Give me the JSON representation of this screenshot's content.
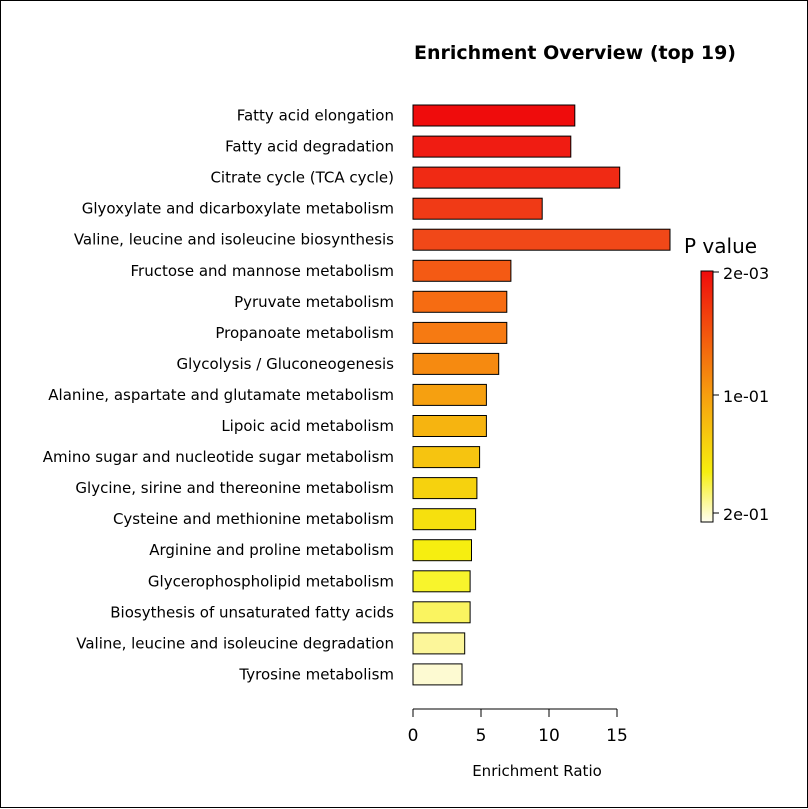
{
  "chart_data": {
    "type": "bar",
    "orientation": "horizontal",
    "title": "Enrichment Overview (top 19)",
    "xlabel": "Enrichment Ratio",
    "ylabel": "",
    "xlim": [
      0,
      19
    ],
    "x_ticks": [
      0,
      5,
      10,
      15
    ],
    "grid": false,
    "categories": [
      "Fatty acid elongation",
      "Fatty acid degradation",
      "Citrate cycle (TCA cycle)",
      "Glyoxylate and dicarboxylate metabolism",
      "Valine, leucine and isoleucine biosynthesis",
      "Fructose and mannose metabolism",
      "Pyruvate metabolism",
      "Propanoate metabolism",
      "Glycolysis / Gluconeogenesis",
      "Alanine, aspartate and glutamate metabolism",
      "Lipoic acid metabolism",
      "Amino sugar and nucleotide sugar metabolism",
      "Glycine, sirine and thereonine metabolism",
      "Cysteine and methionine metabolism",
      "Arginine and proline metabolism",
      "Glycerophospholipid metabolism",
      "Biosythesis of unsaturated fatty acids",
      "Valine, leucine and isoleucine degradation",
      "Tyrosine metabolism"
    ],
    "values": [
      11.9,
      11.6,
      15.2,
      9.5,
      18.9,
      7.2,
      6.9,
      6.9,
      6.3,
      5.4,
      5.4,
      4.9,
      4.7,
      4.6,
      4.3,
      4.2,
      4.2,
      3.8,
      3.6
    ],
    "colors": [
      "#ef0c0c",
      "#f01c12",
      "#f02a14",
      "#f03a16",
      "#f14818",
      "#f45a14",
      "#f66c12",
      "#f67a12",
      "#f68a10",
      "#f6a010",
      "#f6b410",
      "#f6c410",
      "#f6d20e",
      "#f6e00e",
      "#f6ee10",
      "#f8f42c",
      "#faf460",
      "#fcf69a",
      "#fdfad2"
    ],
    "bar_outline": "#000000",
    "legend": {
      "title": "P value",
      "labels": [
        "2e-03",
        "1e-01",
        "2e-01"
      ],
      "placement": "right",
      "gradient_top": "#ef0c0c",
      "gradient_mid": "#f6a010",
      "gradient_low": "#f6ee10",
      "gradient_bottom": "#fffef0"
    }
  }
}
